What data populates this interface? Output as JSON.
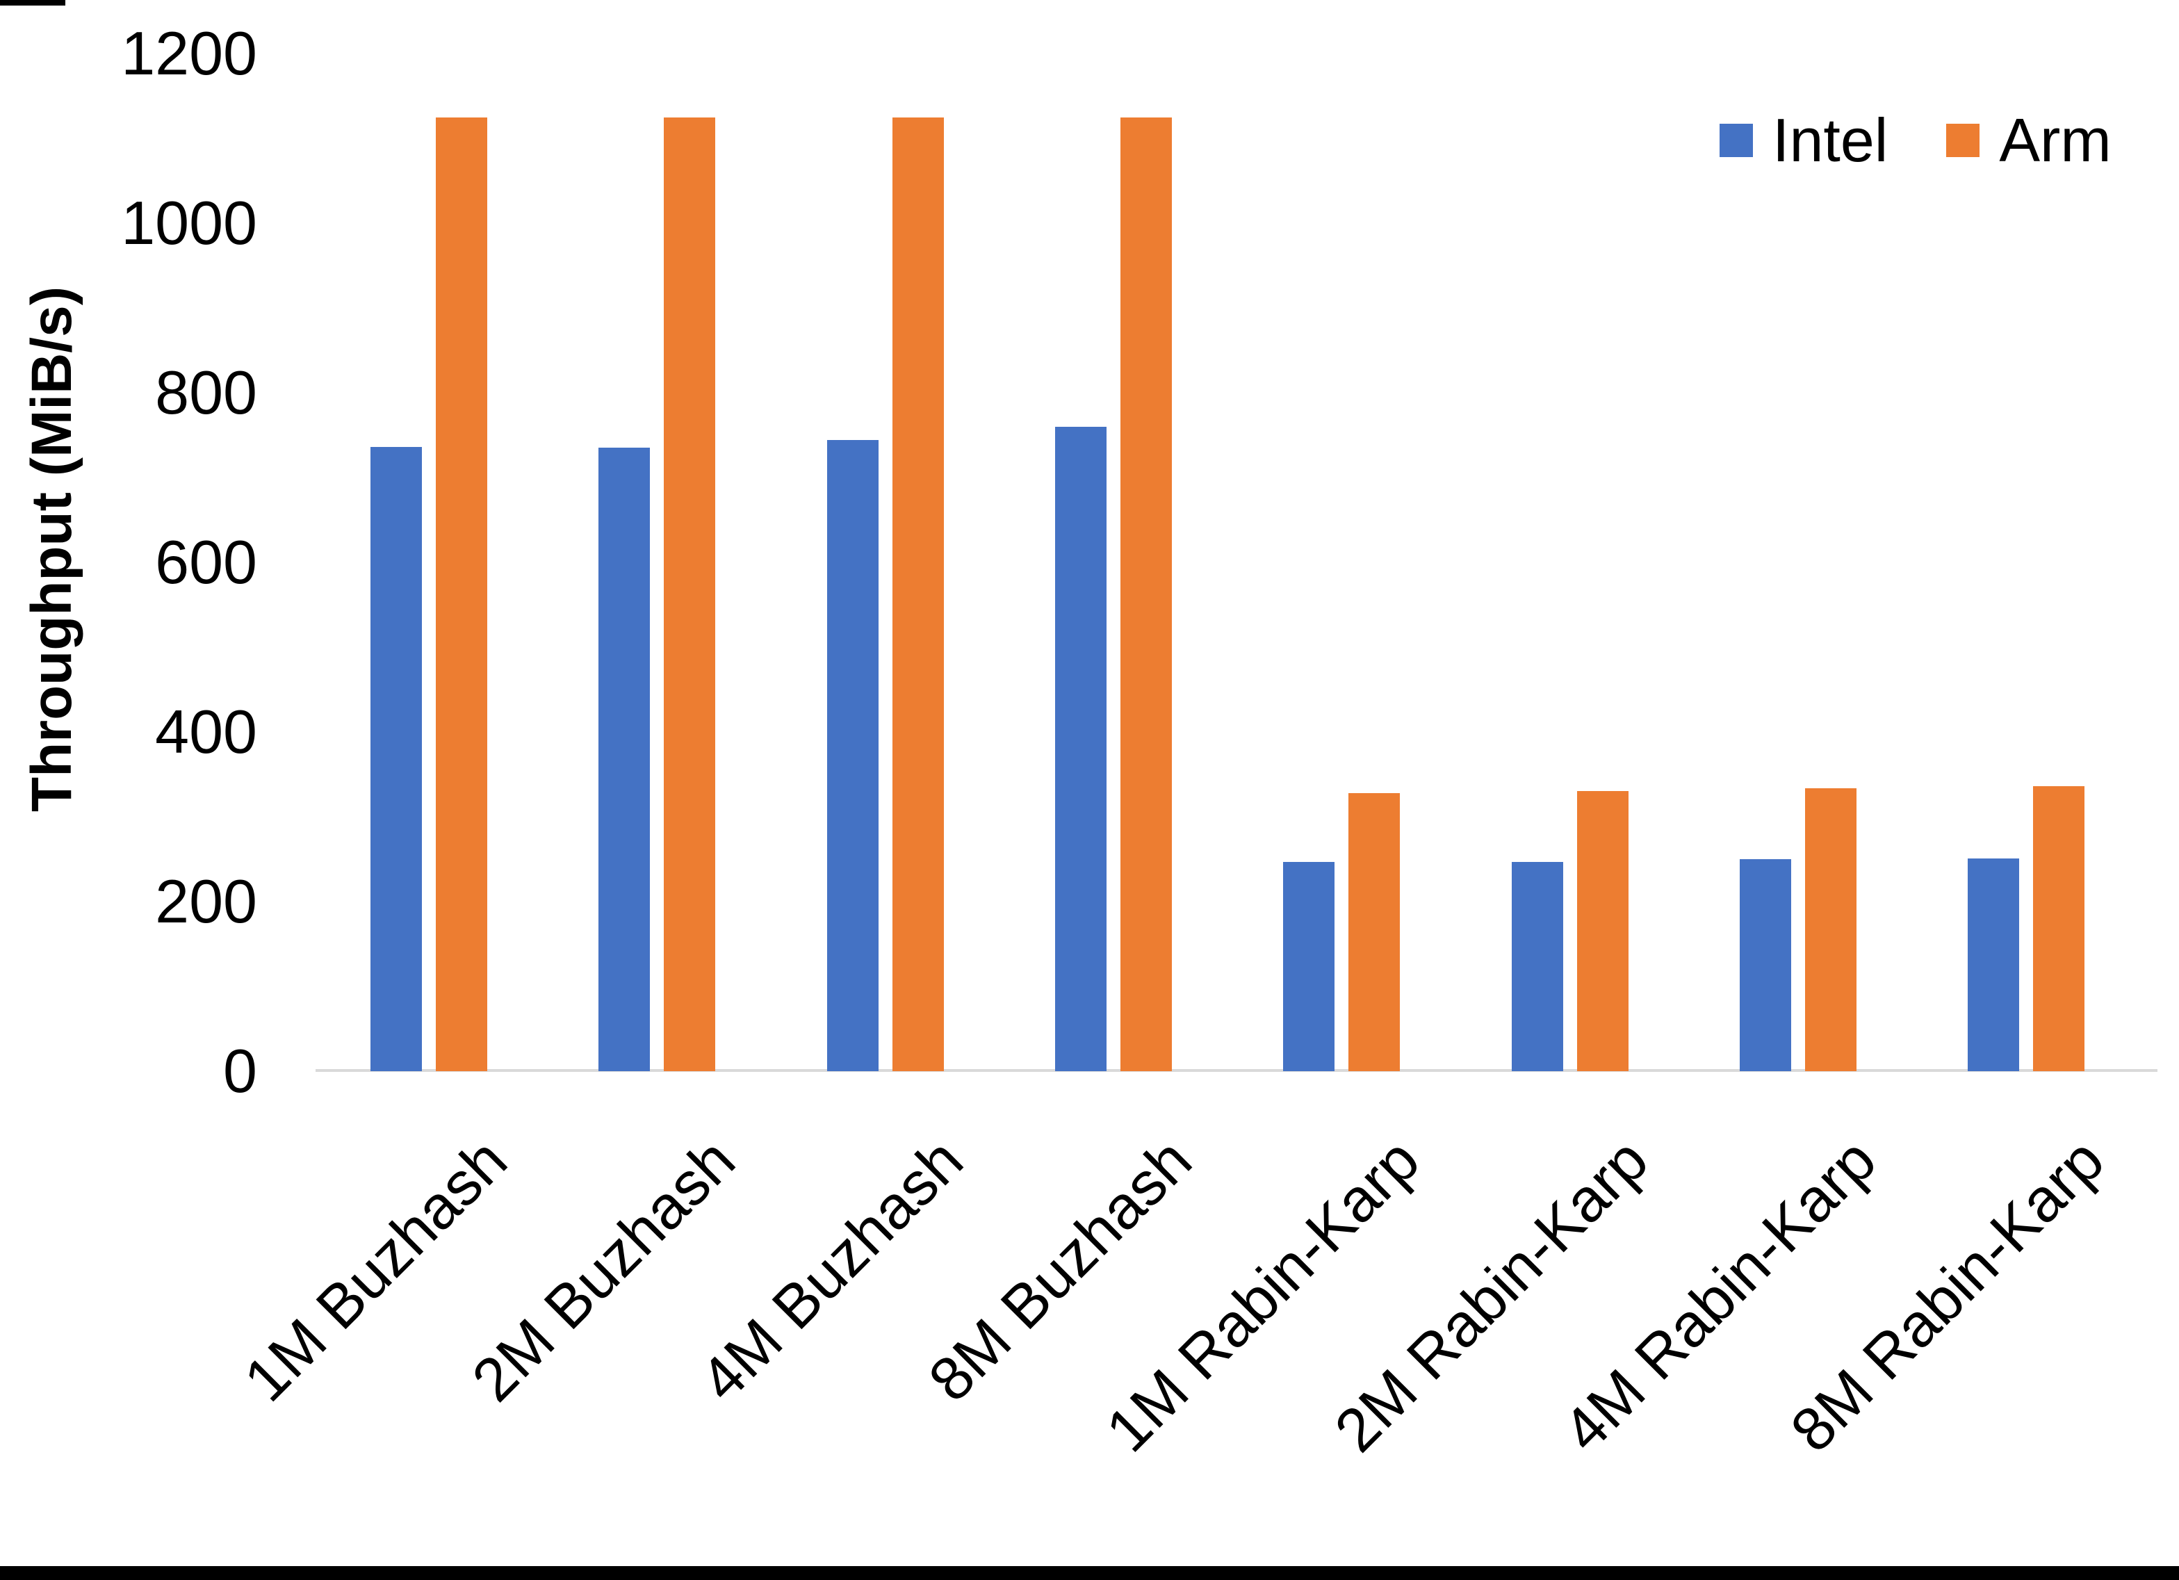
{
  "chart_data": {
    "type": "bar",
    "title": "",
    "xlabel": "",
    "ylabel": "Throughput (MiB/s)",
    "categories": [
      "1M Buzhash",
      "2M Buzhash",
      "4M Buzhash",
      "8M Buzhash",
      "1M Rabin-Karp",
      "2M Rabin-Karp",
      "4M Rabin-Karp",
      "8M Rabin-Karp"
    ],
    "series": [
      {
        "name": "Intel",
        "color": "#4472C4",
        "values": [
          736,
          735,
          744,
          760,
          247,
          247,
          250,
          251
        ]
      },
      {
        "name": "Arm",
        "color": "#ED7D31",
        "values": [
          1125,
          1125,
          1125,
          1125,
          328,
          330,
          334,
          336
        ]
      }
    ],
    "ylim": [
      0,
      1200
    ],
    "ytick_step": 200,
    "yticks": [
      "0",
      "200",
      "400",
      "600",
      "800",
      "1000",
      "1200"
    ],
    "grid": false,
    "legend_position": "top-right"
  },
  "legend": {
    "items": [
      {
        "label": "Intel",
        "color": "#4472C4"
      },
      {
        "label": "Arm",
        "color": "#ED7D31"
      }
    ]
  },
  "colors": {
    "axis_line": "#d9d9d9",
    "text": "#000000",
    "background": "#ffffff"
  }
}
